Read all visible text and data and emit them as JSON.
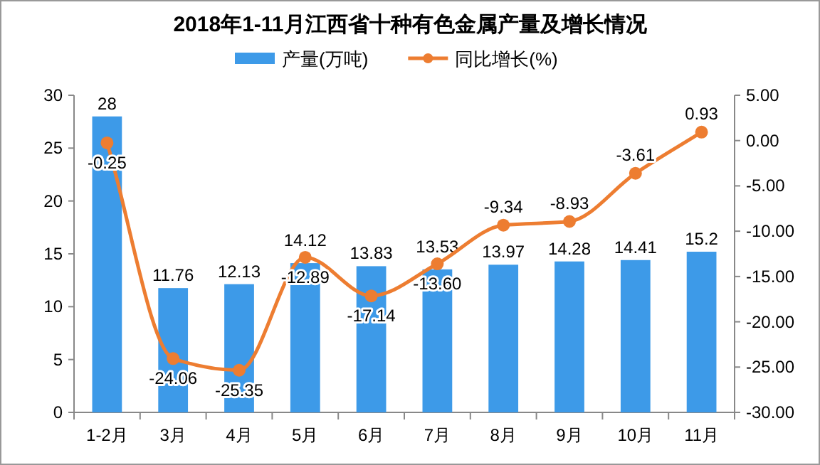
{
  "chart_data": {
    "type": "bar",
    "title": "2018年1-11月江西省十种有色金属产量及增长情况",
    "categories": [
      "1-2月",
      "3月",
      "4月",
      "5月",
      "6月",
      "7月",
      "8月",
      "9月",
      "10月",
      "11月"
    ],
    "series": [
      {
        "name": "产量(万吨)",
        "color": "#3d9ae8",
        "values": [
          28,
          11.76,
          12.13,
          14.12,
          13.83,
          13.53,
          13.97,
          14.28,
          14.41,
          15.2
        ],
        "value_labels": [
          "28",
          "11.76",
          "12.13",
          "14.12",
          "13.83",
          "13.53",
          "13.97",
          "14.28",
          "14.41",
          "15.2"
        ]
      },
      {
        "name": "同比增长(%)",
        "type": "line",
        "axis": "y2",
        "color": "#ed7d31",
        "marker": "circle",
        "values": [
          -0.25,
          -24.06,
          -25.35,
          -12.89,
          -17.14,
          -13.6,
          -9.34,
          -8.93,
          -3.61,
          0.93
        ],
        "value_labels": [
          "-0.25",
          "-24.06",
          "-25.35",
          "-12.89",
          "-17.14",
          "-13.60",
          "-9.34",
          "-8.93",
          "-3.61",
          "0.93"
        ]
      }
    ],
    "ylim": [
      0,
      30
    ],
    "yticks": [
      0,
      5,
      10,
      15,
      20,
      25,
      30
    ],
    "y2lim": [
      -30,
      5
    ],
    "y2ticks": [
      {
        "value": -30,
        "label": "-30.00"
      },
      {
        "value": -25,
        "label": "-25.00"
      },
      {
        "value": -20,
        "label": "-20.00"
      },
      {
        "value": -15,
        "label": "-15.00"
      },
      {
        "value": -10,
        "label": "-10.00"
      },
      {
        "value": -5,
        "label": "-5.00"
      },
      {
        "value": 0,
        "label": "0.00"
      },
      {
        "value": 5,
        "label": "5.00"
      }
    ],
    "legend": "top",
    "grid": false
  }
}
